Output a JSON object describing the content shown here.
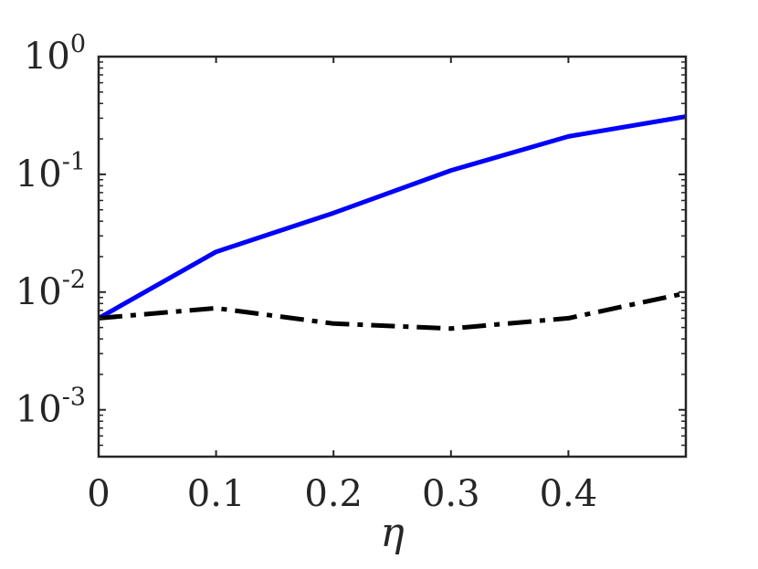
{
  "chart_data": {
    "type": "line",
    "xlabel": "η",
    "ylabel": "",
    "title": "",
    "xlim": [
      0,
      0.5
    ],
    "ylim": [
      0.0004,
      1
    ],
    "yscale": "log",
    "grid": false,
    "legend": "none",
    "x": [
      0,
      0.1,
      0.2,
      0.3,
      0.4,
      0.5
    ],
    "xticks": [
      {
        "value": 0,
        "label": "0"
      },
      {
        "value": 0.1,
        "label": "0.1"
      },
      {
        "value": 0.2,
        "label": "0.2"
      },
      {
        "value": 0.3,
        "label": "0.3"
      },
      {
        "value": 0.4,
        "label": "0.4"
      }
    ],
    "yticks": [
      {
        "value": 0.001,
        "base": "10",
        "exp": "-3"
      },
      {
        "value": 0.01,
        "base": "10",
        "exp": "-2"
      },
      {
        "value": 0.1,
        "base": "10",
        "exp": "-1"
      },
      {
        "value": 1,
        "base": "10",
        "exp": "0"
      }
    ],
    "series": [
      {
        "color": "#0000ff",
        "style": "solid",
        "values": [
          0.006,
          0.022,
          0.047,
          0.108,
          0.21,
          0.31
        ]
      },
      {
        "color": "#000000",
        "style": "dashdot",
        "values": [
          0.006,
          0.0073,
          0.0054,
          0.0049,
          0.006,
          0.0098
        ]
      }
    ]
  }
}
